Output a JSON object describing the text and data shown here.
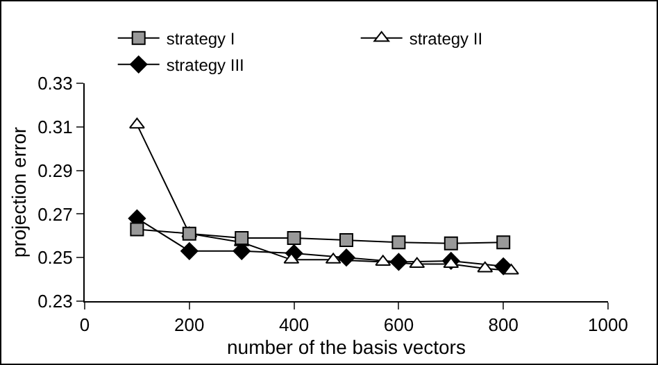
{
  "chart_data": {
    "type": "line",
    "xlabel": "number of the basis vectors",
    "ylabel": "projection error",
    "xlim": [
      0,
      1000
    ],
    "xticks": [
      0,
      200,
      400,
      600,
      800,
      1000
    ],
    "ylim": [
      0.23,
      0.33
    ],
    "yticks": [
      0.23,
      0.25,
      0.27,
      0.29,
      0.31,
      0.33
    ],
    "grid": false,
    "legend": "top",
    "series": [
      {
        "name": "strategy I",
        "color": "#999999",
        "marker": "square",
        "x": [
          100,
          200,
          300,
          400,
          500,
          600,
          700,
          800
        ],
        "values": [
          0.263,
          0.261,
          0.259,
          0.259,
          0.258,
          0.257,
          0.2565,
          0.257
        ]
      },
      {
        "name": "strategy II",
        "color": "#ffffff",
        "marker": "triangle",
        "x": [
          100,
          200,
          300,
          395,
          475,
          570,
          635,
          700,
          765,
          815
        ],
        "values": [
          0.311,
          0.261,
          0.257,
          0.249,
          0.249,
          0.248,
          0.247,
          0.247,
          0.245,
          0.244
        ]
      },
      {
        "name": "strategy III",
        "color": "#000000",
        "marker": "diamond",
        "x": [
          100,
          200,
          300,
          400,
          500,
          600,
          700,
          800
        ],
        "values": [
          0.268,
          0.253,
          0.253,
          0.252,
          0.25,
          0.248,
          0.2485,
          0.246
        ]
      }
    ]
  }
}
